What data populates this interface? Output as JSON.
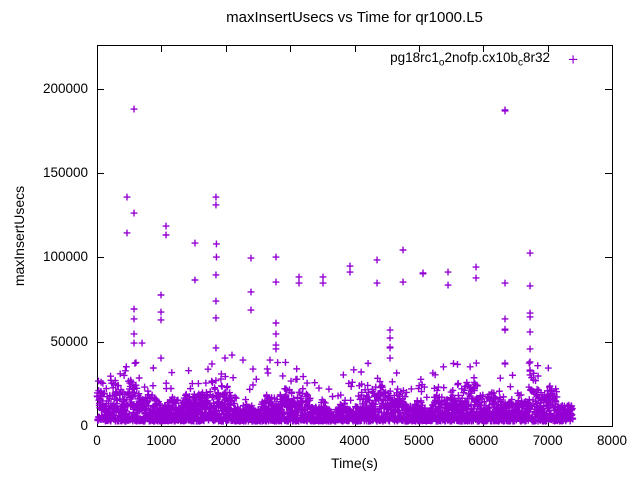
{
  "colors": {
    "marker": "#9400D3",
    "text": "#000000",
    "background": "#ffffff",
    "border": "#000000"
  },
  "chart_data": {
    "type": "scatter",
    "title": "maxInsertUsecs vs Time for qr1000.L5",
    "xlabel": "Time(s)",
    "ylabel": "maxInsertUsecs",
    "xlim": [
      0,
      8000
    ],
    "ylim": [
      0,
      226000
    ],
    "x_ticks": [
      0,
      1000,
      2000,
      3000,
      4000,
      5000,
      6000,
      7000,
      8000
    ],
    "y_ticks": [
      0,
      50000,
      100000,
      150000,
      200000
    ],
    "grid": false,
    "legend_position": "top-right-inside",
    "series": [
      {
        "name": "pg18rc1_o2nofp.cx10b_c8r32",
        "legend_parts": [
          [
            "t",
            "pg18rc1"
          ],
          [
            "sub",
            "o"
          ],
          [
            "t",
            "2nofp.cx10b"
          ],
          [
            "sub",
            "c"
          ],
          [
            "t",
            "8r32"
          ]
        ],
        "color": "#9400D3",
        "marker": "plus",
        "outliers": [
          [
            466,
            135800
          ],
          [
            466,
            114500
          ],
          [
            575,
            188000
          ],
          [
            575,
            126300
          ],
          [
            575,
            69400
          ],
          [
            575,
            63500
          ],
          [
            575,
            54600
          ],
          [
            575,
            49200
          ],
          [
            700,
            49200
          ],
          [
            994,
            77700
          ],
          [
            994,
            67600
          ],
          [
            994,
            62900
          ],
          [
            994,
            40300
          ],
          [
            1072,
            118600
          ],
          [
            1072,
            113300
          ],
          [
            1522,
            108500
          ],
          [
            1522,
            86600
          ],
          [
            1786,
            36800
          ],
          [
            1848,
            135800
          ],
          [
            1848,
            131100
          ],
          [
            1855,
            108000
          ],
          [
            1855,
            100200
          ],
          [
            1848,
            89600
          ],
          [
            1848,
            74100
          ],
          [
            1848,
            64100
          ],
          [
            1848,
            46300
          ],
          [
            1988,
            40300
          ],
          [
            2097,
            42100
          ],
          [
            2268,
            39100
          ],
          [
            2392,
            99600
          ],
          [
            2392,
            79500
          ],
          [
            2392,
            68800
          ],
          [
            2423,
            33800
          ],
          [
            2656,
            31400
          ],
          [
            2687,
            39100
          ],
          [
            2780,
            100200
          ],
          [
            2780,
            85400
          ],
          [
            2780,
            61100
          ],
          [
            2780,
            54600
          ],
          [
            2780,
            48000
          ],
          [
            2780,
            45700
          ],
          [
            3138,
            88400
          ],
          [
            3138,
            84800
          ],
          [
            3511,
            88400
          ],
          [
            3511,
            84800
          ],
          [
            3930,
            94900
          ],
          [
            3930,
            91300
          ],
          [
            4350,
            98500
          ],
          [
            4350,
            84800
          ],
          [
            4552,
            56900
          ],
          [
            4552,
            52200
          ],
          [
            4552,
            46800
          ],
          [
            4552,
            46300
          ],
          [
            4552,
            40300
          ],
          [
            4754,
            104400
          ],
          [
            4754,
            85400
          ],
          [
            5064,
            90800
          ],
          [
            5064,
            90300
          ],
          [
            5453,
            91300
          ],
          [
            5453,
            83600
          ],
          [
            5888,
            94300
          ],
          [
            5888,
            87800
          ],
          [
            6338,
            187500
          ],
          [
            6338,
            186900
          ],
          [
            6338,
            84800
          ],
          [
            6338,
            63500
          ],
          [
            6338,
            57400
          ],
          [
            6338,
            56900
          ],
          [
            6338,
            37300
          ],
          [
            6338,
            36800
          ],
          [
            6727,
            102600
          ],
          [
            6727,
            83100
          ],
          [
            6727,
            67000
          ],
          [
            6727,
            64700
          ],
          [
            6727,
            55800
          ],
          [
            6727,
            45700
          ],
          [
            6727,
            38000
          ],
          [
            6727,
            33200
          ],
          [
            6727,
            30300
          ]
        ],
        "band": {
          "description": "dense noise band of ~3000 samples hugging the x-axis",
          "t_range": [
            3,
            7390
          ],
          "count": 3000,
          "v_floor": 2800,
          "core_top": 21000,
          "fringe_top": 42000,
          "tail_after": 7150,
          "tail_top": 14000
        }
      }
    ]
  }
}
